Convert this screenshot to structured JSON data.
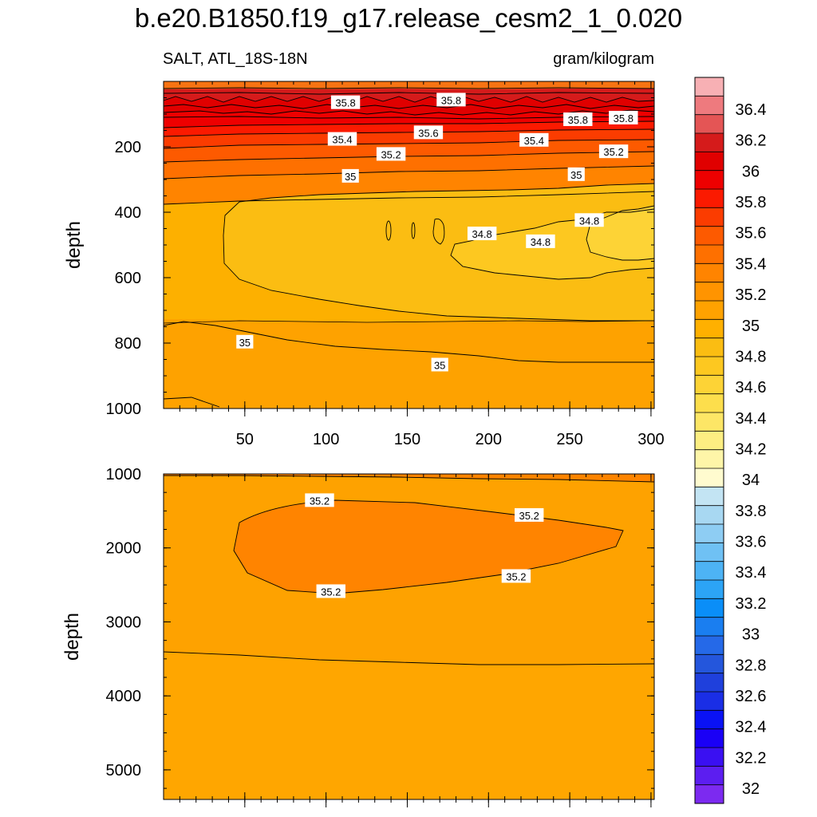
{
  "chart_data": {
    "type": "contour",
    "title": "b.e20.B1850.f19_g17.release_cesm2_1_0.020",
    "variable_label": "SALT, ATL_18S-18N",
    "units": "gram/kilogram",
    "colorbar": {
      "labels": [
        "36.4",
        "36.2",
        "36",
        "35.8",
        "35.6",
        "35.4",
        "35.2",
        "35",
        "34.8",
        "34.6",
        "34.4",
        "34.2",
        "34",
        "33.8",
        "33.6",
        "33.4",
        "33.2",
        "33",
        "32.8",
        "32.6",
        "32.4",
        "32.2",
        "32"
      ],
      "colors": [
        "#f7b0b4",
        "#ee7a7e",
        "#e45555",
        "#d51b1b",
        "#e00000",
        "#ee0000",
        "#fb1a00",
        "#fb3c00",
        "#fd5a00",
        "#fe7000",
        "#ff8400",
        "#ff9400",
        "#ffa200",
        "#ffb000",
        "#fbbd12",
        "#fdc820",
        "#fdd336",
        "#fdde4c",
        "#fde666",
        "#fdee82",
        "#fef5a8",
        "#fffbcf",
        "#c3e4f3",
        "#a8d8f2",
        "#8ecdf3",
        "#6fc1f4",
        "#4db3f5",
        "#2ca4f6",
        "#0a8ef8",
        "#1a7ef0",
        "#2569e8",
        "#2456dc",
        "#1f40dc",
        "#1a2ee6",
        "#0a12f4",
        "#1a00f6",
        "#3a10f2",
        "#5c1ef0",
        "#7c2af0"
      ]
    },
    "panels": [
      {
        "name": "upper",
        "xlim": [
          0,
          302
        ],
        "ylim": [
          0,
          1000
        ],
        "y_inverted": true,
        "ylabel": "depth",
        "xticks": [
          50,
          100,
          150,
          200,
          250,
          300
        ],
        "yticks": [
          200,
          400,
          600,
          800,
          1000
        ],
        "contour_labels": [
          {
            "text": "35.8",
            "x": 112,
            "y": 65
          },
          {
            "text": "35.8",
            "x": 177,
            "y": 57
          },
          {
            "text": "35.8",
            "x": 255,
            "y": 117
          },
          {
            "text": "35.8",
            "x": 283,
            "y": 112
          },
          {
            "text": "35.6",
            "x": 163,
            "y": 157
          },
          {
            "text": "35.4",
            "x": 110,
            "y": 177
          },
          {
            "text": "35.4",
            "x": 228,
            "y": 180
          },
          {
            "text": "35.2",
            "x": 140,
            "y": 223
          },
          {
            "text": "35.2",
            "x": 277,
            "y": 215
          },
          {
            "text": "35",
            "x": 115,
            "y": 290
          },
          {
            "text": "35",
            "x": 254,
            "y": 285
          },
          {
            "text": "34.8",
            "x": 196,
            "y": 466
          },
          {
            "text": "34.8",
            "x": 232,
            "y": 490
          },
          {
            "text": "34.8",
            "x": 262,
            "y": 425
          },
          {
            "text": "35",
            "x": 50,
            "y": 797
          },
          {
            "text": "35",
            "x": 170,
            "y": 867
          }
        ]
      },
      {
        "name": "lower",
        "xlim": [
          0,
          302
        ],
        "ylim": [
          1000,
          5400
        ],
        "y_inverted": true,
        "ylabel": "depth",
        "yticks": [
          1000,
          2000,
          3000,
          4000,
          5000
        ],
        "contour_labels": [
          {
            "text": "35.2",
            "x": 96,
            "y": 1360
          },
          {
            "text": "35.2",
            "x": 225,
            "y": 1560
          },
          {
            "text": "35.2",
            "x": 217,
            "y": 2385
          },
          {
            "text": "35.2",
            "x": 103,
            "y": 2590
          }
        ]
      }
    ]
  }
}
